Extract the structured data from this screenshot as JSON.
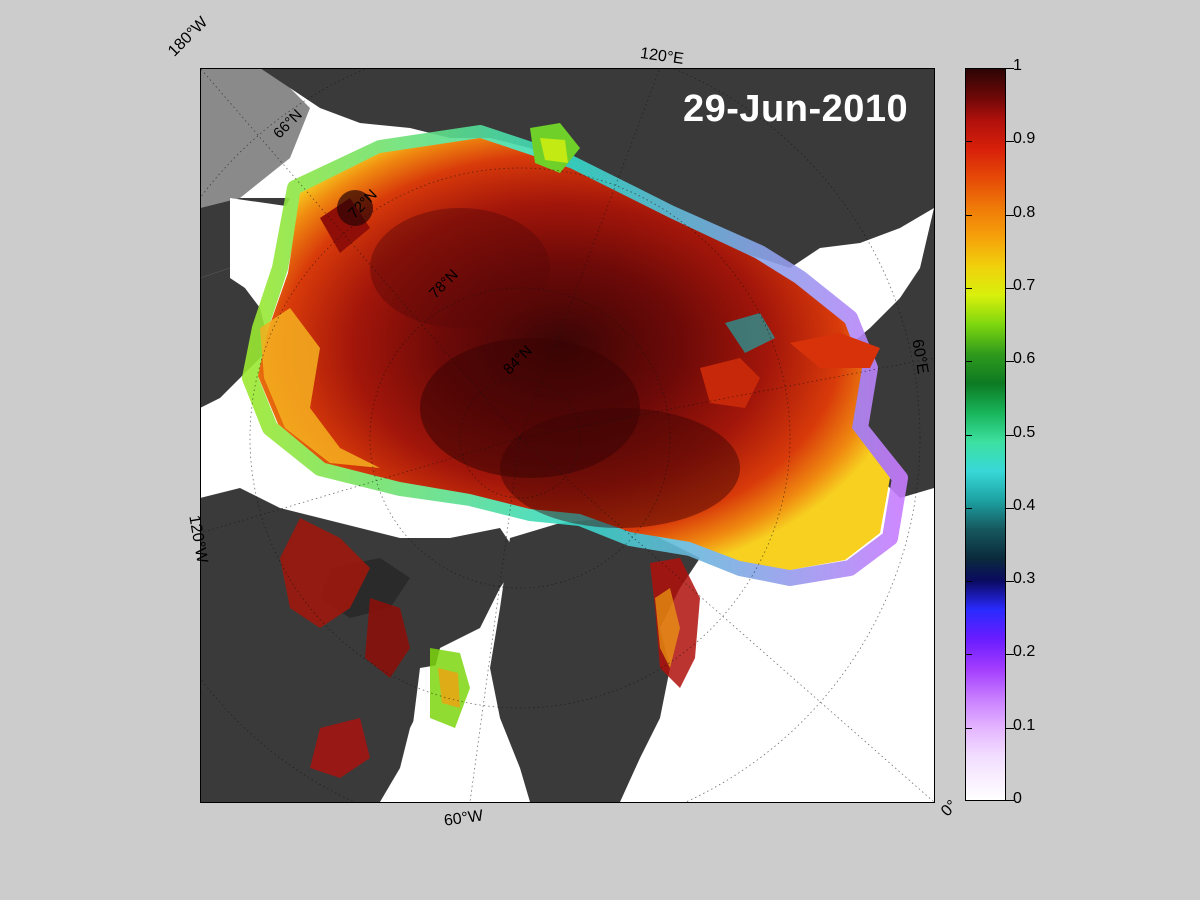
{
  "map": {
    "date_label": "29-Jun-2010",
    "longitude_labels": [
      "180°W",
      "120°E",
      "60°E",
      "0°",
      "60°W",
      "120°W"
    ],
    "latitude_labels": [
      "66°N",
      "72°N",
      "78°N",
      "84°N"
    ],
    "colors": {
      "land": "#3a3a3a",
      "ocean_open": "#ffffff",
      "background": "#cccccc",
      "no_data": "#8a8a8a"
    }
  },
  "colorbar": {
    "min": 0,
    "max": 1,
    "tick_labels": [
      "1",
      "0.9",
      "0.8",
      "0.7",
      "0.6",
      "0.5",
      "0.4",
      "0.3",
      "0.2",
      "0.1",
      "0"
    ],
    "tick_values": [
      1,
      0.9,
      0.8,
      0.7,
      0.6,
      0.5,
      0.4,
      0.3,
      0.2,
      0.1,
      0
    ]
  }
}
